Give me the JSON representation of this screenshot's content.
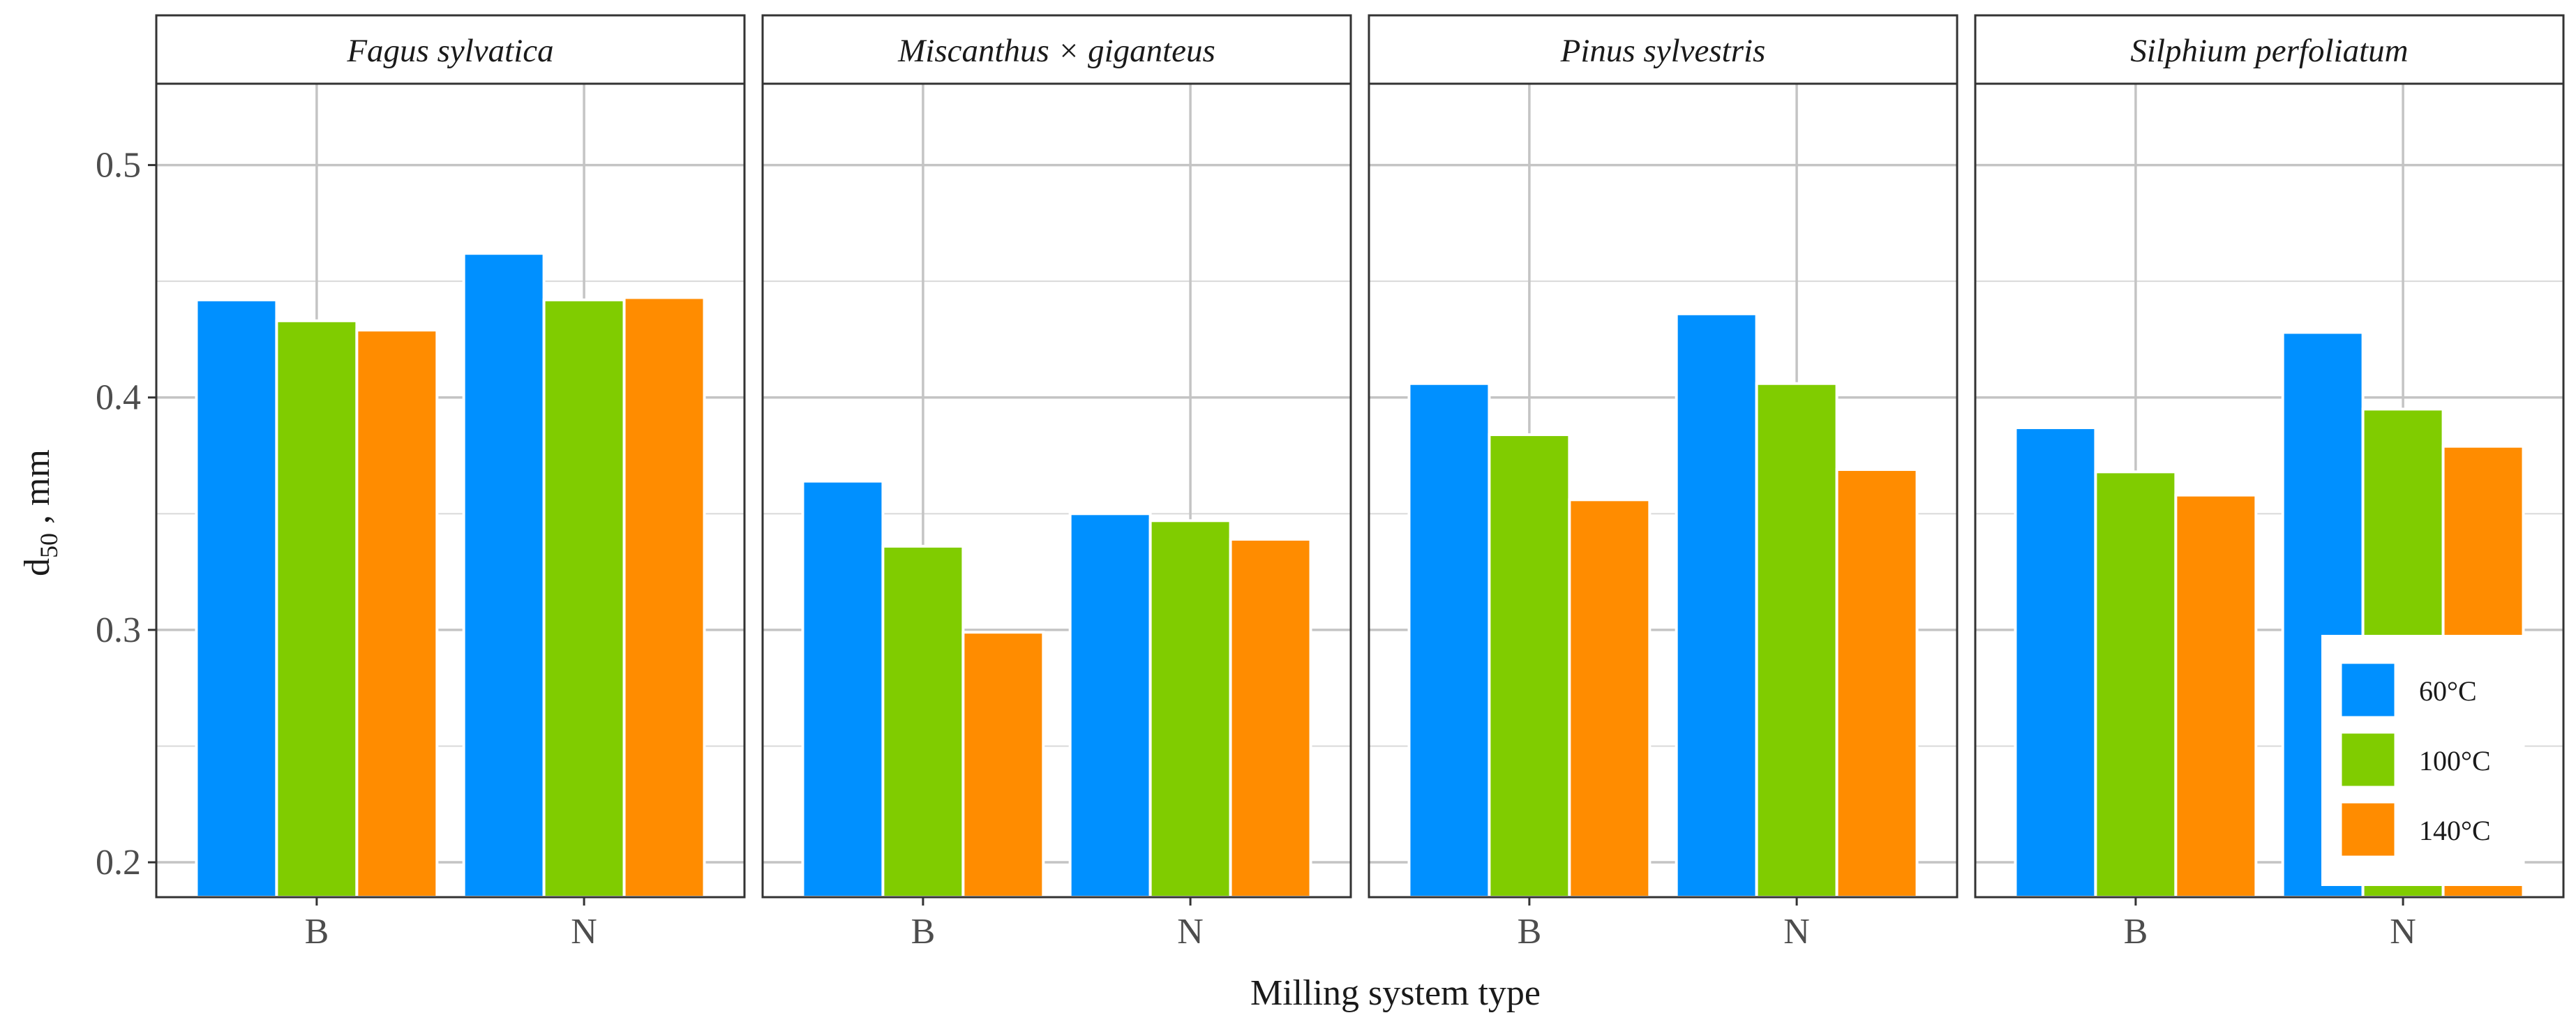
{
  "chart_data": {
    "type": "bar",
    "layout": "faceted",
    "xlabel": "Milling system type",
    "ylabel_main": "d",
    "ylabel_sub": "50",
    "ylabel_rest": " , mm",
    "ylim": [
      0.185,
      0.535
    ],
    "yticks": [
      0.2,
      0.3,
      0.4,
      0.5
    ],
    "ytick_labels": [
      "0.2",
      "0.3",
      "0.4",
      "0.5"
    ],
    "categories": [
      "B",
      "N"
    ],
    "legend": {
      "position": "bottom-right",
      "items": [
        {
          "label": "60°C",
          "color": "#0090FF"
        },
        {
          "label": "100°C",
          "color": "#80CC00"
        },
        {
          "label": "140°C",
          "color": "#FF8C00"
        }
      ]
    },
    "panels": [
      {
        "title": "Fagus sylvatica",
        "series": [
          {
            "name": "60°C",
            "values": [
              0.442,
              0.462
            ]
          },
          {
            "name": "100°C",
            "values": [
              0.433,
              0.442
            ]
          },
          {
            "name": "140°C",
            "values": [
              0.429,
              0.443
            ]
          }
        ]
      },
      {
        "title": "Miscanthus × giganteus",
        "series": [
          {
            "name": "60°C",
            "values": [
              0.364,
              0.35
            ]
          },
          {
            "name": "100°C",
            "values": [
              0.336,
              0.347
            ]
          },
          {
            "name": "140°C",
            "values": [
              0.299,
              0.339
            ]
          }
        ]
      },
      {
        "title": "Pinus sylvestris",
        "series": [
          {
            "name": "60°C",
            "values": [
              0.406,
              0.436
            ]
          },
          {
            "name": "100°C",
            "values": [
              0.384,
              0.406
            ]
          },
          {
            "name": "140°C",
            "values": [
              0.356,
              0.369
            ]
          }
        ]
      },
      {
        "title": "Silphium perfoliatum",
        "series": [
          {
            "name": "60°C",
            "values": [
              0.387,
              0.428
            ]
          },
          {
            "name": "100°C",
            "values": [
              0.368,
              0.395
            ]
          },
          {
            "name": "140°C",
            "values": [
              0.358,
              0.379
            ]
          }
        ]
      }
    ]
  }
}
